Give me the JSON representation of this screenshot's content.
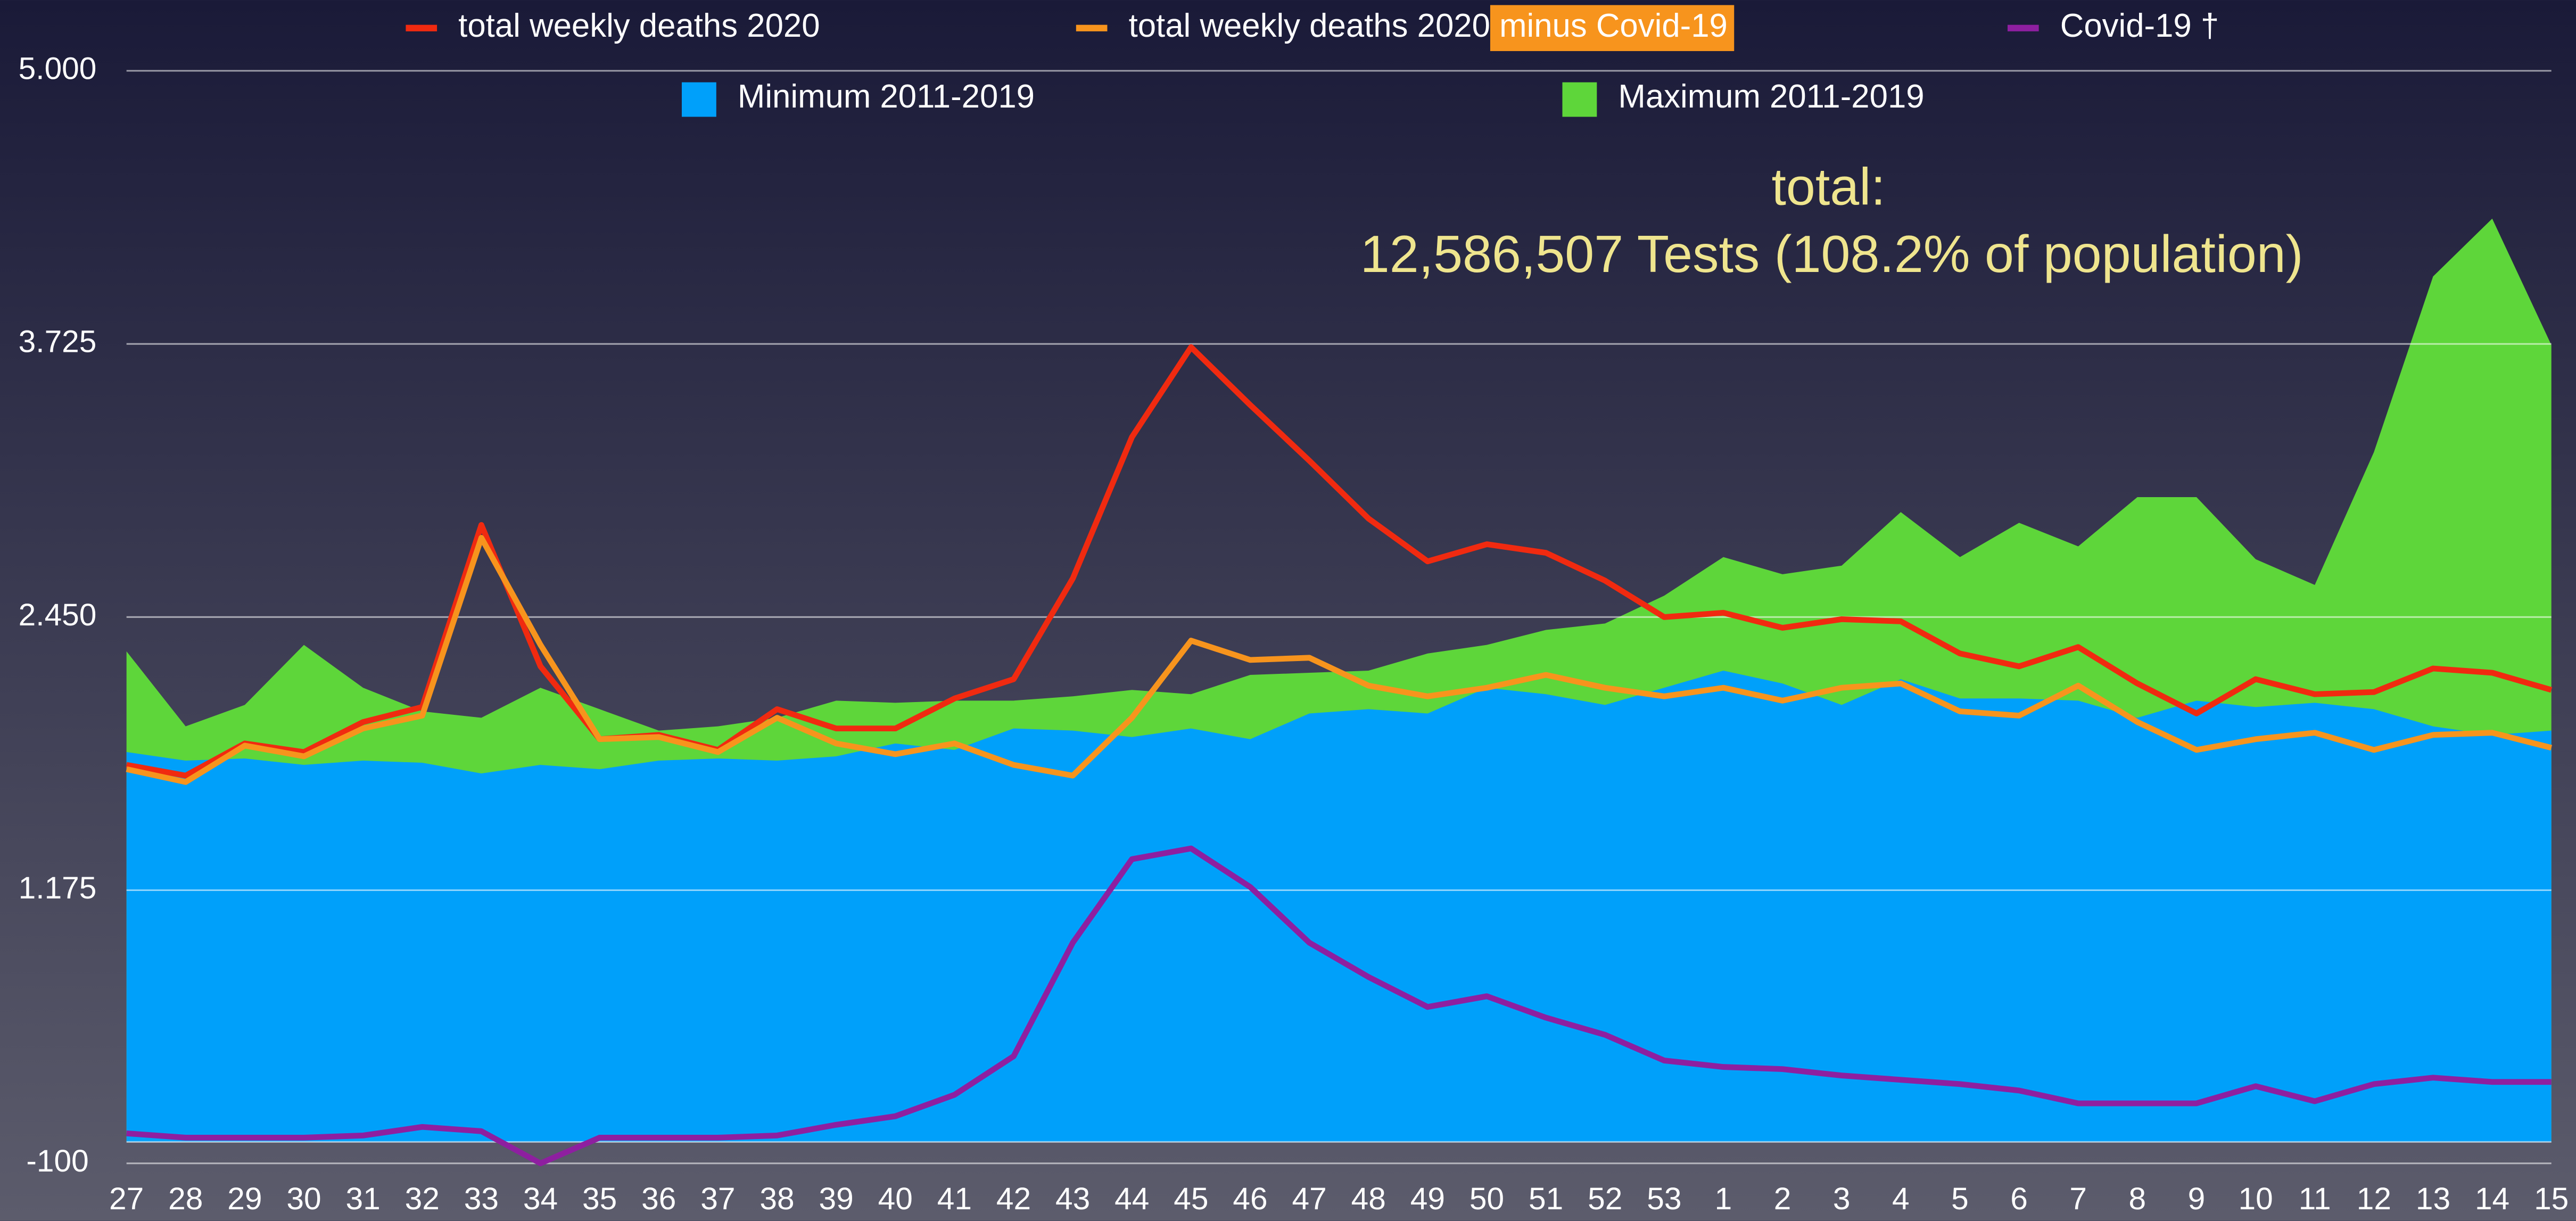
{
  "chart_data": {
    "type": "line",
    "categories": [
      "27",
      "28",
      "29",
      "30",
      "31",
      "32",
      "33",
      "34",
      "35",
      "36",
      "37",
      "38",
      "39",
      "40",
      "41",
      "42",
      "43",
      "44",
      "45",
      "46",
      "47",
      "48",
      "49",
      "50",
      "51",
      "52",
      "53",
      "1",
      "2",
      "3",
      "4",
      "5",
      "6",
      "7",
      "8",
      "9",
      "10",
      "11",
      "12",
      "13",
      "14",
      "15"
    ],
    "series": [
      {
        "name": "Maximum 2011-2019",
        "type": "area",
        "color": "#5ed63a",
        "values": [
          2290,
          1940,
          2040,
          2320,
          2120,
          2010,
          1980,
          2120,
          2020,
          1920,
          1940,
          1980,
          2060,
          2050,
          2060,
          2060,
          2080,
          2110,
          2090,
          2180,
          2190,
          2200,
          2280,
          2320,
          2390,
          2420,
          2550,
          2730,
          2650,
          2690,
          2940,
          2730,
          2890,
          2780,
          3010,
          3010,
          2720,
          2600,
          3220,
          4040,
          4310,
          3720
        ]
      },
      {
        "name": "Minimum 2011-2019",
        "type": "area",
        "color": "#00a0fa",
        "values": [
          1820,
          1780,
          1790,
          1760,
          1780,
          1770,
          1720,
          1760,
          1740,
          1780,
          1790,
          1780,
          1800,
          1860,
          1830,
          1930,
          1920,
          1890,
          1930,
          1880,
          2000,
          2020,
          2000,
          2120,
          2090,
          2040,
          2120,
          2200,
          2140,
          2040,
          2160,
          2070,
          2070,
          2060,
          1980,
          2060,
          2030,
          2050,
          2020,
          1940,
          1900,
          1920
        ]
      },
      {
        "name": "total weekly deaths 2020",
        "type": "line",
        "color": "#f02a10",
        "values": [
          1760,
          1710,
          1860,
          1820,
          1960,
          2030,
          2880,
          2220,
          1880,
          1900,
          1830,
          2020,
          1930,
          1930,
          2070,
          2160,
          2630,
          3290,
          3710,
          3440,
          3180,
          2910,
          2710,
          2790,
          2750,
          2620,
          2450,
          2470,
          2400,
          2440,
          2430,
          2280,
          2220,
          2310,
          2140,
          2000,
          2160,
          2090,
          2100,
          2210,
          2190,
          2110
        ]
      },
      {
        "name": "total weekly deaths 2020 minus Covid-19",
        "type": "line",
        "color": "#f7941d",
        "values": [
          1740,
          1680,
          1850,
          1800,
          1930,
          1990,
          2820,
          2320,
          1880,
          1890,
          1820,
          1980,
          1860,
          1810,
          1860,
          1760,
          1710,
          1980,
          2340,
          2250,
          2260,
          2130,
          2080,
          2120,
          2180,
          2120,
          2080,
          2120,
          2060,
          2120,
          2140,
          2010,
          1990,
          2130,
          1960,
          1830,
          1880,
          1910,
          1830,
          1900,
          1910,
          1840
        ]
      },
      {
        "name": "Covid-19 †",
        "type": "line",
        "color": "#8e1fa0",
        "values": [
          40,
          20,
          20,
          20,
          30,
          70,
          50,
          -100,
          20,
          20,
          20,
          30,
          80,
          120,
          220,
          400,
          930,
          1320,
          1370,
          1190,
          930,
          770,
          630,
          680,
          580,
          500,
          380,
          350,
          340,
          310,
          290,
          270,
          240,
          180,
          180,
          180,
          260,
          190,
          270,
          300,
          280,
          280
        ]
      }
    ],
    "ylim": [
      -100,
      5000
    ],
    "yticks": [
      -100,
      {
        "value": 1175,
        "label": "1.175"
      },
      {
        "value": 2450,
        "label": "2.450"
      },
      {
        "value": 3725,
        "label": "3.725"
      },
      {
        "value": 5000,
        "label": "5.000"
      }
    ],
    "grid": true,
    "annotations": [
      "total:",
      "12,586,507 Tests  (108.2% of population)"
    ]
  }
}
